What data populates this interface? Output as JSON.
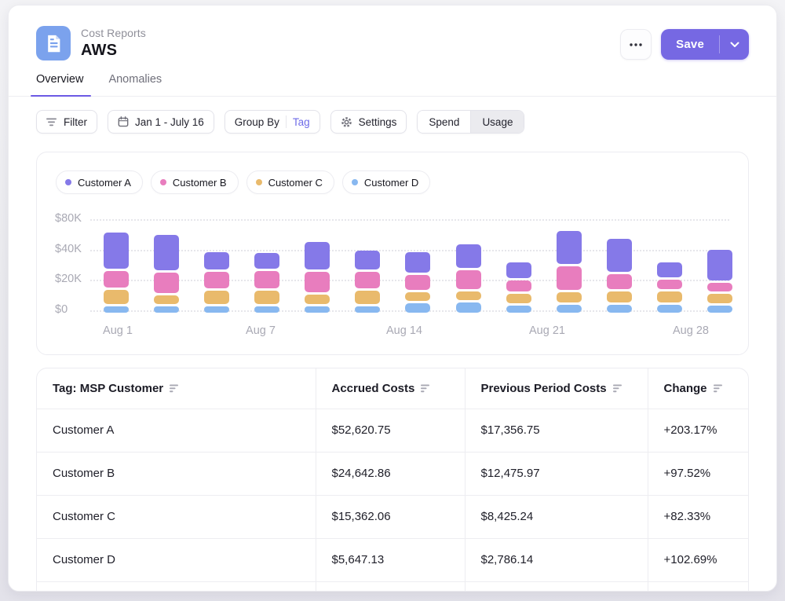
{
  "header": {
    "app_label": "Cost Reports",
    "title": "AWS",
    "save_label": "Save"
  },
  "tabs": [
    {
      "label": "Overview",
      "active": true
    },
    {
      "label": "Anomalies",
      "active": false
    }
  ],
  "toolbar": {
    "filter_label": "Filter",
    "date_range": "Jan 1 - July 16",
    "group_by_label": "Group By",
    "group_by_value": "Tag",
    "settings_label": "Settings",
    "toggle": [
      {
        "label": "Spend",
        "selected": true
      },
      {
        "label": "Usage",
        "selected": false
      }
    ]
  },
  "chart_data": {
    "type": "bar",
    "stacked": true,
    "title": "",
    "xlabel": "",
    "ylabel": "",
    "unit": "USD thousands",
    "x_labels": [
      "Aug 1",
      "Aug 7",
      "Aug 14",
      "Aug 21",
      "Aug 28"
    ],
    "y_axis": {
      "labels": [
        "$80K",
        "$40K",
        "$20K",
        "$0"
      ],
      "values": [
        80,
        40,
        20,
        0
      ]
    },
    "grid": "dotted horizontal",
    "legend_position": "top-left",
    "series": [
      {
        "name": "Customer A",
        "color": "#8579e8",
        "values": [
          31.8,
          30.3,
          11.3,
          10.3,
          20.5,
          12.8,
          13.9,
          15.9,
          10.8,
          31.3,
          26.1,
          10.2,
          20.5
        ]
      },
      {
        "name": "Customer B",
        "color": "#e87dbe",
        "values": [
          11.3,
          13.4,
          11.3,
          11.8,
          13.3,
          10.8,
          9.7,
          12.8,
          7.1,
          15.4,
          9.8,
          6.2,
          5.7
        ]
      },
      {
        "name": "Customer C",
        "color": "#e9ba6c",
        "values": [
          9.2,
          5.6,
          8.7,
          8.7,
          6.2,
          8.7,
          5.6,
          5.6,
          6.2,
          6.7,
          7.2,
          7.2,
          6.2
        ]
      },
      {
        "name": "Customer D",
        "color": "#88b8f0",
        "values": [
          4.1,
          4.1,
          4.1,
          4.1,
          4.1,
          4.1,
          6.2,
          6.7,
          4.6,
          5.1,
          5.1,
          5.1,
          4.6
        ]
      }
    ]
  },
  "table": {
    "columns": [
      "Tag: MSP Customer",
      "Accrued Costs",
      "Previous Period Costs",
      "Change"
    ],
    "rows": [
      {
        "name": "Customer A",
        "accrued": "$52,620.75",
        "previous": "$17,356.75",
        "change": "+203.17%"
      },
      {
        "name": "Customer B",
        "accrued": "$24,642.86",
        "previous": "$12,475.97",
        "change": "+97.52%"
      },
      {
        "name": "Customer C",
        "accrued": "$15,362.06",
        "previous": "$8,425.24",
        "change": "+82.33%"
      },
      {
        "name": "Customer D",
        "accrued": "$5,647.13",
        "previous": "$2,786.14",
        "change": "+102.69%"
      }
    ]
  },
  "colors": {
    "accent": "#7668e3",
    "tab_underline": "#6c59e4",
    "doc_icon_bg": "#7ba2ed",
    "bar_purple": "#8579e8",
    "bar_pink": "#e87dbe",
    "bar_orange": "#e9ba6c",
    "bar_blue": "#88b8f0"
  }
}
